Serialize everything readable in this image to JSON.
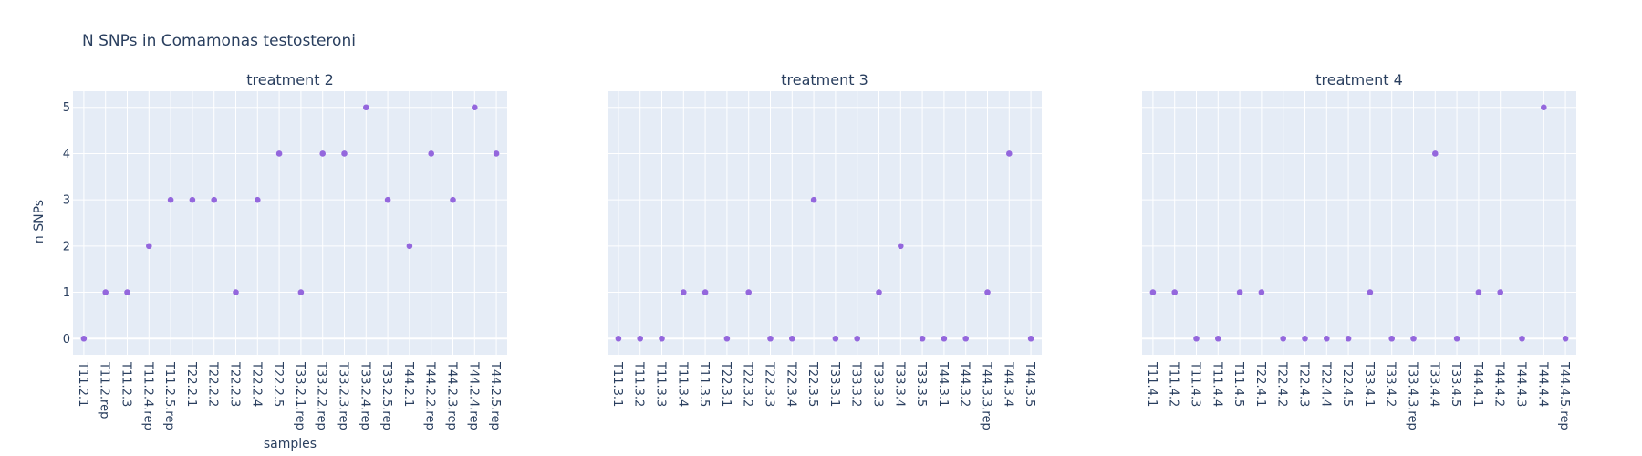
{
  "chart_data": {
    "type": "scatter",
    "title": "N SNPs in Comamonas testosteroni",
    "xlabel": "samples",
    "ylabel": "n SNPs",
    "ylim": [
      -0.35,
      5.35
    ],
    "yticks": [
      0,
      1,
      2,
      3,
      4,
      5
    ],
    "grid": true,
    "marker_color": "#9467dd",
    "background_color": "#e5ecf6",
    "panels": [
      {
        "title": "treatment 2",
        "categories": [
          "T11.2.1",
          "T11.2.rep",
          "T11.2.3",
          "T11.2.4.rep",
          "T11.2.5.rep",
          "T22.2.1",
          "T22.2.2",
          "T22.2.3",
          "T22.2.4",
          "T22.2.5",
          "T33.2.1.rep",
          "T33.2.2.rep",
          "T33.2.3.rep",
          "T33.2.4.rep",
          "T33.2.5.rep",
          "T44.2.1",
          "T44.2.2.rep",
          "T44.2.3.rep",
          "T44.2.4.rep",
          "T44.2.5.rep"
        ],
        "values": [
          0,
          1,
          1,
          2,
          3,
          3,
          3,
          1,
          3,
          4,
          1,
          4,
          4,
          5,
          3,
          2,
          4,
          3,
          5,
          4
        ]
      },
      {
        "title": "treatment 3",
        "categories": [
          "T11.3.1",
          "T11.3.2",
          "T11.3.3",
          "T11.3.4",
          "T11.3.5",
          "T22.3.1",
          "T22.3.2",
          "T22.3.3",
          "T22.3.4",
          "T22.3.5",
          "T33.3.1",
          "T33.3.2",
          "T33.3.3",
          "T33.3.4",
          "T33.3.5",
          "T44.3.1",
          "T44.3.2",
          "T44.3.3.rep",
          "T44.3.4",
          "T44.3.5"
        ],
        "values": [
          0,
          0,
          0,
          1,
          1,
          0,
          1,
          0,
          0,
          3,
          0,
          0,
          1,
          2,
          0,
          0,
          0,
          1,
          4,
          0
        ]
      },
      {
        "title": "treatment 4",
        "categories": [
          "T11.4.1",
          "T11.4.2",
          "T11.4.3",
          "T11.4.4",
          "T11.4.5",
          "T22.4.1",
          "T22.4.2",
          "T22.4.3",
          "T22.4.4",
          "T22.4.5",
          "T33.4.1",
          "T33.4.2",
          "T33.4.3.rep",
          "T33.4.4",
          "T33.4.5",
          "T44.4.1",
          "T44.4.2",
          "T44.4.3",
          "T44.4.4",
          "T44.4.5.rep"
        ],
        "values": [
          1,
          1,
          0,
          0,
          1,
          1,
          0,
          0,
          0,
          0,
          1,
          0,
          0,
          4,
          0,
          1,
          1,
          0,
          5,
          0
        ]
      }
    ]
  }
}
